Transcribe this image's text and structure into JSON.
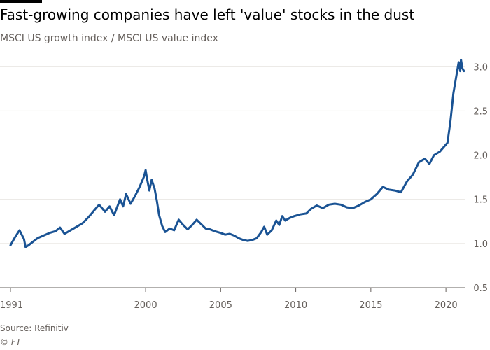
{
  "header": {
    "title": "Fast-growing companies have left 'value' stocks in the dust",
    "subtitle": "MSCI US growth index / MSCI US value index"
  },
  "footer": {
    "source": "Source: Refinitiv",
    "credit": "© FT"
  },
  "colors": {
    "line": "#1a5394",
    "grid": "#e6e3df",
    "axis": "#66605c"
  },
  "chart_data": {
    "type": "line",
    "title": "Fast-growing companies have left 'value' stocks in the dust",
    "subtitle": "MSCI US growth index / MSCI US value index",
    "xlabel": "",
    "ylabel": "",
    "xlim": [
      1991,
      2021.3
    ],
    "ylim": [
      0.5,
      3.2
    ],
    "x_ticks": [
      1991,
      2000,
      2005,
      2010,
      2015,
      2020
    ],
    "x_tick_labels": [
      "1991",
      "2000",
      "2005",
      "2010",
      "2015",
      "2020"
    ],
    "y_ticks": [
      0.5,
      1.0,
      1.5,
      2.0,
      2.5,
      3.0
    ],
    "y_tick_labels": [
      "0.5",
      "1.0",
      "1.5",
      "2.0",
      "2.5",
      "3.0"
    ],
    "grid": true,
    "y_axis_side": "right",
    "series": [
      {
        "x": [
          1991.0,
          1991.3,
          1991.6,
          1991.9,
          1992.0,
          1992.2,
          1992.5,
          1992.8,
          1993.2,
          1993.6,
          1994.0,
          1994.3,
          1994.6,
          1995.0,
          1995.4,
          1995.8,
          1996.2,
          1996.6,
          1996.9,
          1997.3,
          1997.6,
          1997.9,
          1998.3,
          1998.5,
          1998.7,
          1999.0,
          1999.3,
          1999.6,
          1999.9,
          2000.0,
          2000.1,
          2000.25,
          2000.4,
          2000.6,
          2000.75,
          2000.9,
          2001.1,
          2001.3,
          2001.6,
          2001.9,
          2002.2,
          2002.5,
          2002.8,
          2003.1,
          2003.4,
          2003.7,
          2004.0,
          2004.3,
          2004.6,
          2005.0,
          2005.3,
          2005.6,
          2005.9,
          2006.2,
          2006.5,
          2006.8,
          2007.1,
          2007.4,
          2007.7,
          2007.9,
          2008.1,
          2008.4,
          2008.7,
          2008.9,
          2009.1,
          2009.3,
          2009.6,
          2009.9,
          2010.3,
          2010.7,
          2011.0,
          2011.4,
          2011.8,
          2012.2,
          2012.6,
          2013.0,
          2013.4,
          2013.8,
          2014.2,
          2014.6,
          2015.0,
          2015.4,
          2015.8,
          2016.2,
          2016.6,
          2017.0,
          2017.4,
          2017.8,
          2018.2,
          2018.6,
          2018.9,
          2019.2,
          2019.6,
          2019.9,
          2020.1,
          2020.3,
          2020.5,
          2020.7,
          2020.85,
          2020.95,
          2021.0,
          2021.1,
          2021.2
        ],
        "y": [
          0.98,
          1.07,
          1.15,
          1.05,
          0.96,
          0.98,
          1.02,
          1.06,
          1.09,
          1.12,
          1.14,
          1.18,
          1.11,
          1.15,
          1.19,
          1.23,
          1.3,
          1.38,
          1.44,
          1.36,
          1.42,
          1.32,
          1.5,
          1.42,
          1.56,
          1.45,
          1.54,
          1.64,
          1.76,
          1.83,
          1.73,
          1.6,
          1.72,
          1.62,
          1.48,
          1.32,
          1.2,
          1.13,
          1.17,
          1.15,
          1.27,
          1.21,
          1.16,
          1.21,
          1.27,
          1.22,
          1.17,
          1.16,
          1.14,
          1.12,
          1.1,
          1.11,
          1.09,
          1.06,
          1.04,
          1.03,
          1.04,
          1.06,
          1.13,
          1.19,
          1.1,
          1.15,
          1.26,
          1.21,
          1.31,
          1.26,
          1.29,
          1.31,
          1.33,
          1.34,
          1.39,
          1.43,
          1.4,
          1.44,
          1.45,
          1.44,
          1.41,
          1.4,
          1.43,
          1.47,
          1.5,
          1.56,
          1.64,
          1.61,
          1.6,
          1.58,
          1.7,
          1.78,
          1.92,
          1.96,
          1.9,
          2.0,
          2.04,
          2.1,
          2.14,
          2.38,
          2.7,
          2.9,
          3.05,
          2.95,
          3.08,
          2.98,
          2.95
        ]
      }
    ]
  }
}
